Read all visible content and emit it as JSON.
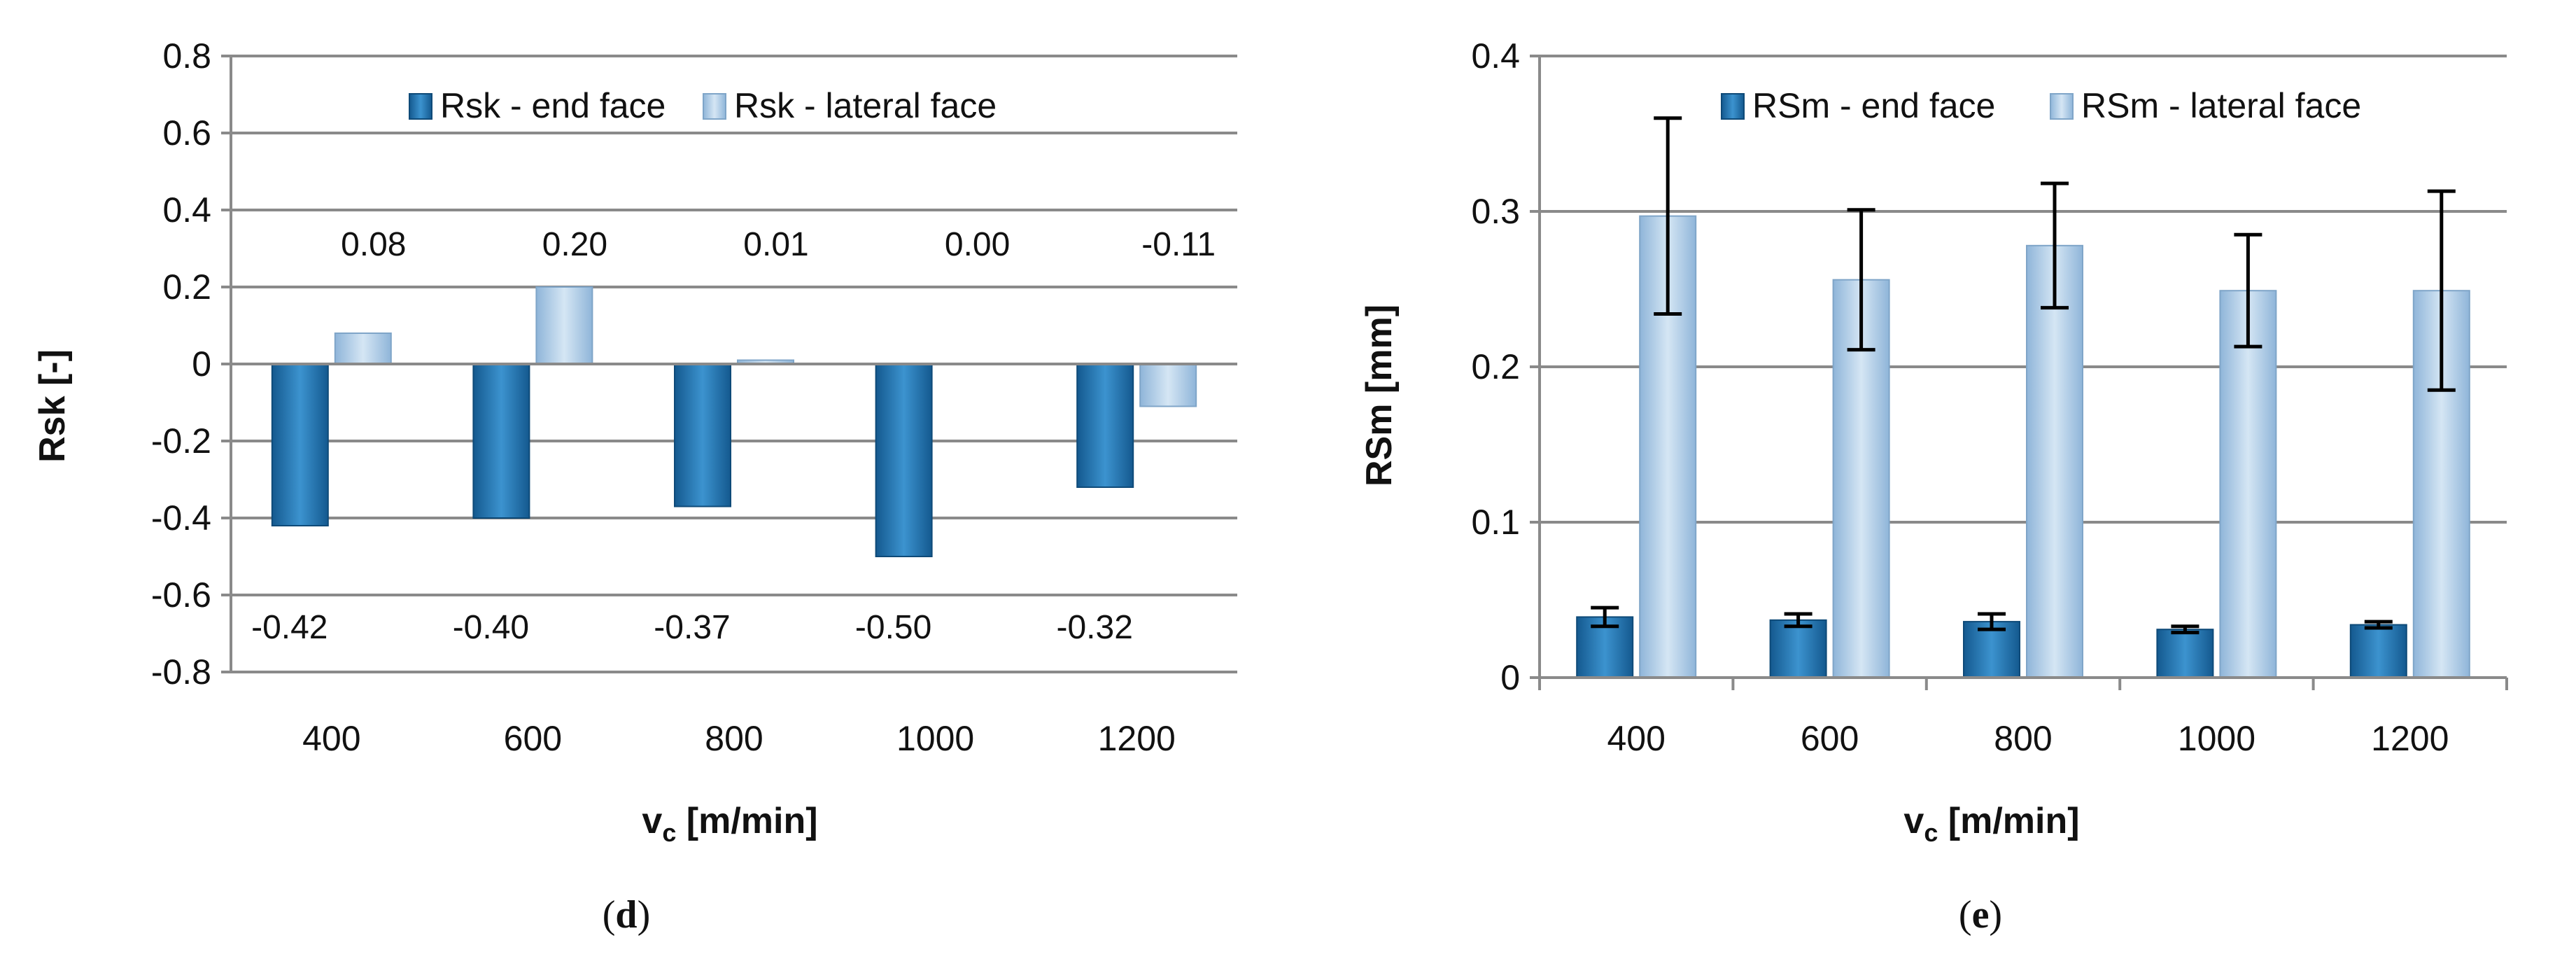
{
  "chart_data": [
    {
      "id": "d",
      "type": "bar",
      "caption_letter": "d",
      "categories": [
        "400",
        "600",
        "800",
        "1000",
        "1200"
      ],
      "series": [
        {
          "name": "Rsk - end face",
          "values": [
            -0.42,
            -0.4,
            -0.37,
            -0.5,
            -0.32
          ],
          "labels": [
            "-0.42",
            "-0.40",
            "-0.37",
            "-0.50",
            "-0.32"
          ],
          "color": "#1f6fa8"
        },
        {
          "name": "Rsk - lateral face",
          "values": [
            0.08,
            0.2,
            0.01,
            0.0,
            -0.11
          ],
          "labels": [
            "0.08",
            "0.20",
            "0.01",
            "0.00",
            "-0.11"
          ],
          "color": "#a9c8e4"
        }
      ],
      "xlabel_main": "v",
      "xlabel_sub": "c",
      "xlabel_rest": " [m/min]",
      "ylabel": "Rsk [-]",
      "ylim": [
        -0.8,
        0.8
      ],
      "yticks": [
        "-0.8",
        "-0.6",
        "-0.4",
        "-0.2",
        "0",
        "0.2",
        "0.4",
        "0.6",
        "0.8"
      ],
      "grid": true,
      "legend": "top"
    },
    {
      "id": "e",
      "type": "bar",
      "caption_letter": "e",
      "categories": [
        "400",
        "600",
        "800",
        "1000",
        "1200"
      ],
      "series": [
        {
          "name": "RSm - end face",
          "values": [
            0.039,
            0.037,
            0.036,
            0.031,
            0.034
          ],
          "err": [
            0.006,
            0.004,
            0.005,
            0.002,
            0.002
          ],
          "color": "#1f6fa8"
        },
        {
          "name": "RSm - lateral face",
          "values": [
            0.297,
            0.256,
            0.278,
            0.249,
            0.249
          ],
          "err": [
            0.063,
            0.045,
            0.04,
            0.036,
            0.064
          ],
          "color": "#a9c8e4"
        }
      ],
      "xlabel_main": "v",
      "xlabel_sub": "c",
      "xlabel_rest": " [m/min]",
      "ylabel": "RSm [mm]",
      "ylim": [
        0,
        0.4
      ],
      "yticks": [
        "0",
        "0.1",
        "0.2",
        "0.3",
        "0.4"
      ],
      "grid": true,
      "legend": "top"
    }
  ]
}
